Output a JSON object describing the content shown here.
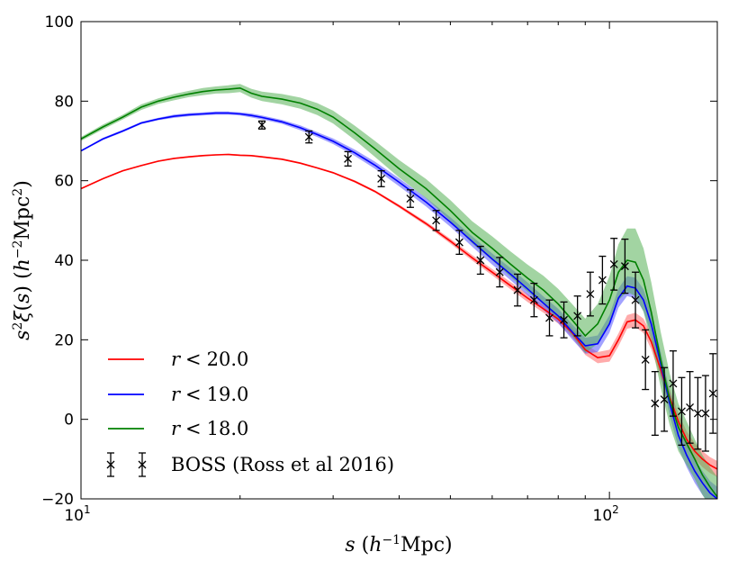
{
  "chart_data": {
    "type": "line",
    "xscale": "log",
    "xlim": [
      10,
      160
    ],
    "ylim": [
      -20,
      100
    ],
    "xlabel": "s (h⁻¹Mpc)",
    "ylabel": "s²ξ(s) (h⁻²Mpc²)",
    "x_ticks": [
      10,
      100
    ],
    "y_ticks": [
      -20,
      0,
      20,
      40,
      60,
      80,
      100
    ],
    "series": [
      {
        "name": "r < 20.0",
        "label_var": "r",
        "label_op": "<",
        "label_val": "20.0",
        "color": "#ff0000",
        "x": [
          10,
          11,
          12,
          13,
          14,
          15,
          16,
          17,
          18,
          19,
          20,
          21,
          22,
          24,
          26,
          28,
          30,
          33,
          36,
          40,
          45,
          50,
          55,
          60,
          65,
          70,
          75,
          80,
          85,
          90,
          95,
          100,
          104,
          108,
          112,
          116,
          120,
          125,
          130,
          135,
          140,
          145,
          150,
          155,
          160
        ],
        "y": [
          58,
          60.5,
          62.5,
          63.8,
          64.9,
          65.6,
          66.0,
          66.3,
          66.5,
          66.6,
          66.4,
          66.3,
          66.0,
          65.4,
          64.4,
          63.2,
          62.0,
          59.8,
          57.3,
          53.6,
          49.2,
          44.8,
          40.6,
          37.0,
          33.6,
          30.5,
          27.8,
          25.2,
          21.8,
          17.5,
          15.5,
          16.0,
          20.0,
          24.5,
          25.0,
          23.5,
          19.5,
          12.5,
          5.5,
          -0.5,
          -5.0,
          -8.0,
          -10.0,
          -11.5,
          -12.5
        ],
        "band": [
          0.2,
          0.2,
          0.2,
          0.2,
          0.2,
          0.2,
          0.2,
          0.2,
          0.2,
          0.2,
          0.2,
          0.2,
          0.2,
          0.2,
          0.2,
          0.2,
          0.2,
          0.3,
          0.3,
          0.4,
          0.5,
          0.6,
          0.7,
          0.8,
          0.9,
          1.0,
          1.0,
          1.1,
          1.2,
          1.3,
          1.4,
          1.5,
          1.6,
          1.7,
          1.8,
          1.8,
          1.9,
          2.0,
          2.0,
          2.0,
          2.0,
          2.0,
          2.0,
          2.0,
          2.0
        ]
      },
      {
        "name": "r < 19.0",
        "label_var": "r",
        "label_op": "<",
        "label_val": "19.0",
        "color": "#0000ff",
        "x": [
          10,
          11,
          12,
          13,
          14,
          15,
          16,
          17,
          18,
          19,
          20,
          21,
          22,
          24,
          26,
          28,
          30,
          33,
          36,
          40,
          45,
          50,
          55,
          60,
          65,
          70,
          75,
          80,
          85,
          90,
          95,
          100,
          104,
          108,
          112,
          116,
          120,
          125,
          130,
          135,
          140,
          145,
          150,
          155,
          160
        ],
        "y": [
          67.5,
          70.5,
          72.5,
          74.5,
          75.5,
          76.2,
          76.6,
          76.8,
          77.0,
          77.0,
          76.8,
          76.4,
          75.9,
          74.8,
          73.3,
          71.6,
          69.9,
          67.0,
          63.9,
          59.6,
          54.6,
          49.6,
          44.7,
          40.3,
          36.5,
          32.8,
          29.2,
          26.0,
          22.0,
          18.5,
          19.0,
          24.0,
          30.5,
          33.5,
          33.0,
          30.0,
          24.0,
          14.0,
          4.0,
          -4.0,
          -9.0,
          -13.0,
          -16.0,
          -18.5,
          -20.0
        ],
        "band": [
          0.2,
          0.3,
          0.3,
          0.3,
          0.3,
          0.4,
          0.4,
          0.4,
          0.4,
          0.4,
          0.4,
          0.5,
          0.5,
          0.5,
          0.6,
          0.6,
          0.7,
          0.8,
          0.9,
          1.0,
          1.1,
          1.2,
          1.3,
          1.4,
          1.5,
          1.6,
          1.7,
          1.8,
          1.9,
          2.0,
          2.1,
          2.2,
          2.4,
          2.5,
          2.6,
          2.7,
          2.8,
          3.0,
          3.0,
          3.0,
          3.0,
          3.0,
          3.0,
          3.0,
          3.0
        ]
      },
      {
        "name": "r < 18.0",
        "label_var": "r",
        "label_op": "<",
        "label_val": "18.0",
        "color": "#008000",
        "x": [
          10,
          11,
          12,
          13,
          14,
          15,
          16,
          17,
          18,
          19,
          20,
          21,
          22,
          24,
          26,
          28,
          30,
          33,
          36,
          40,
          45,
          50,
          55,
          60,
          65,
          70,
          75,
          80,
          85,
          90,
          95,
          100,
          104,
          108,
          112,
          116,
          120,
          125,
          130,
          135,
          140,
          145,
          150,
          155,
          160
        ],
        "y": [
          70.5,
          73.5,
          76.0,
          78.5,
          80.0,
          81.0,
          81.8,
          82.4,
          82.8,
          83.0,
          83.3,
          82.0,
          81.2,
          80.5,
          79.5,
          78.0,
          76.0,
          72.0,
          68.0,
          63.0,
          58.0,
          52.5,
          47.0,
          43.0,
          39.0,
          35.5,
          32.5,
          29.0,
          25.0,
          21.0,
          24.0,
          30.0,
          37.0,
          40.0,
          39.5,
          35.0,
          27.0,
          15.0,
          5.0,
          -2.0,
          -6.0,
          -10.0,
          -14.0,
          -17.0,
          -19.5
        ],
        "band": [
          0.5,
          0.6,
          0.6,
          0.7,
          0.7,
          0.8,
          0.8,
          0.9,
          0.9,
          1.0,
          1.0,
          1.1,
          1.2,
          1.3,
          1.4,
          1.5,
          1.6,
          1.8,
          2.0,
          2.2,
          2.4,
          2.6,
          2.8,
          3.0,
          3.2,
          3.4,
          3.6,
          3.8,
          4.0,
          4.3,
          5.0,
          6.0,
          7.0,
          8.0,
          8.5,
          8.0,
          7.5,
          7.0,
          6.5,
          6.0,
          5.5,
          5.0,
          5.0,
          5.0,
          5.0
        ]
      }
    ],
    "points": {
      "name": "BOSS (Ross et al 2016)",
      "color": "#000000",
      "x": [
        22,
        27,
        32,
        37,
        42,
        47,
        52,
        57,
        62,
        67,
        72,
        77,
        82,
        87,
        92,
        97,
        102,
        107,
        112,
        117,
        122,
        127,
        132,
        137,
        142,
        147,
        152,
        157
      ],
      "y": [
        74,
        71,
        65.5,
        60.5,
        55.5,
        50,
        44.5,
        40,
        37,
        32.5,
        30,
        25.5,
        25,
        26,
        31.5,
        35,
        39,
        38.5,
        30,
        15,
        4,
        5,
        9,
        2,
        3,
        1.5,
        1.5,
        6.5
      ],
      "err": [
        1.0,
        1.5,
        1.8,
        2.0,
        2.2,
        2.5,
        3.0,
        3.5,
        3.7,
        4.0,
        4.2,
        4.5,
        4.5,
        5.0,
        5.5,
        6.0,
        6.5,
        6.8,
        7.0,
        7.5,
        8.0,
        8.0,
        8.2,
        8.5,
        9.0,
        9.0,
        9.5,
        10.0
      ]
    },
    "legend": "lower-left"
  }
}
